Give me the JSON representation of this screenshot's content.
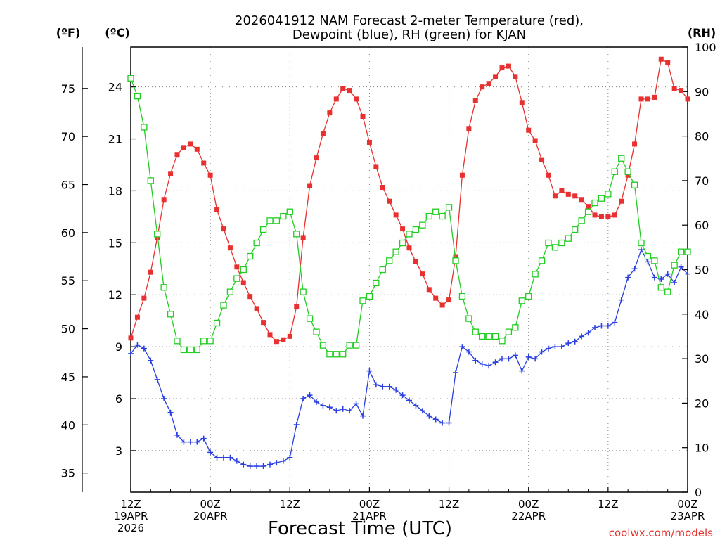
{
  "chart_data": {
    "type": "line",
    "title": "2026041912 NAM Forecast 2-meter Temperature (red),",
    "subtitle": "Dewpoint (blue), RH (green) for KJAN",
    "xlabel": "Forecast Time (UTC)",
    "credit": "coolwx.com/models",
    "units": {
      "fahrenheit": "(ºF)",
      "celsius": "(ºC)",
      "rh": "(RH)"
    },
    "ylim_celsius": [
      0.6,
      26.3
    ],
    "ylim_fahrenheit": [
      33.0,
      79.3
    ],
    "ylim_rh": [
      0,
      100
    ],
    "yticks_celsius": [
      "3",
      "6",
      "9",
      "12",
      "15",
      "18",
      "21",
      "24"
    ],
    "yticks_fahrenheit": [
      "35",
      "40",
      "45",
      "50",
      "55",
      "60",
      "65",
      "70",
      "75"
    ],
    "yticks_rh": [
      "0",
      "10",
      "20",
      "30",
      "40",
      "50",
      "60",
      "70",
      "80",
      "90",
      "100"
    ],
    "grid": true,
    "x_start_hour": 0,
    "x_end_hour": 84,
    "x_step_hours": 1,
    "xticks": [
      {
        "hour": 0,
        "lines": [
          "12Z",
          "19APR",
          "2026"
        ]
      },
      {
        "hour": 12,
        "lines": [
          "00Z",
          "20APR"
        ]
      },
      {
        "hour": 24,
        "lines": [
          "12Z"
        ]
      },
      {
        "hour": 36,
        "lines": [
          "00Z",
          "21APR"
        ]
      },
      {
        "hour": 48,
        "lines": [
          "12Z"
        ]
      },
      {
        "hour": 60,
        "lines": [
          "00Z",
          "22APR"
        ]
      },
      {
        "hour": 72,
        "lines": [
          "12Z"
        ]
      },
      {
        "hour": 84,
        "lines": [
          "00Z",
          "23APR"
        ]
      }
    ],
    "series": [
      {
        "name": "2-meter Temperature",
        "color": "#e83030",
        "axis": "celsius",
        "marker": "filled-square",
        "values": [
          9.5,
          10.7,
          11.8,
          13.3,
          15.3,
          17.5,
          19.0,
          20.1,
          20.5,
          20.7,
          20.4,
          19.6,
          18.9,
          16.9,
          15.8,
          14.7,
          13.6,
          12.7,
          11.9,
          11.2,
          10.4,
          9.7,
          9.3,
          9.4,
          9.6,
          11.3,
          15.3,
          18.3,
          19.9,
          21.3,
          22.5,
          23.3,
          23.9,
          23.8,
          23.3,
          22.3,
          20.8,
          19.4,
          18.2,
          17.4,
          16.6,
          15.8,
          14.7,
          13.9,
          13.2,
          12.3,
          11.8,
          11.4,
          11.7,
          14.2,
          18.9,
          21.6,
          23.2,
          24.0,
          24.2,
          24.6,
          25.1,
          25.2,
          24.6,
          23.1,
          21.5,
          20.9,
          19.8,
          18.9,
          17.7,
          18.0,
          17.8,
          17.7,
          17.5,
          17.1,
          16.6,
          16.5,
          16.5,
          16.6,
          17.4,
          18.9,
          20.7,
          23.3,
          23.3,
          23.4,
          25.6,
          25.4,
          23.9,
          23.8,
          23.3
        ]
      },
      {
        "name": "Dewpoint",
        "color": "#2a3fe0",
        "axis": "celsius",
        "marker": "plus",
        "values": [
          8.6,
          9.1,
          8.9,
          8.2,
          7.1,
          6.0,
          5.2,
          3.9,
          3.5,
          3.5,
          3.5,
          3.7,
          2.9,
          2.6,
          2.6,
          2.6,
          2.4,
          2.2,
          2.1,
          2.1,
          2.1,
          2.2,
          2.3,
          2.4,
          2.6,
          4.5,
          6.0,
          6.2,
          5.8,
          5.6,
          5.5,
          5.3,
          5.4,
          5.3,
          5.7,
          5.0,
          7.6,
          6.8,
          6.7,
          6.7,
          6.5,
          6.2,
          5.9,
          5.6,
          5.3,
          5.0,
          4.8,
          4.6,
          4.6,
          7.5,
          9.0,
          8.7,
          8.2,
          8.0,
          7.9,
          8.1,
          8.3,
          8.3,
          8.5,
          7.6,
          8.4,
          8.3,
          8.7,
          8.9,
          9.0,
          9.0,
          9.2,
          9.3,
          9.6,
          9.8,
          10.1,
          10.2,
          10.2,
          10.4,
          11.7,
          13.0,
          13.5,
          14.6,
          13.9,
          13.0,
          12.9,
          13.2,
          12.7,
          13.6,
          13.2
        ]
      },
      {
        "name": "RH",
        "color": "#22cc22",
        "axis": "rh",
        "marker": "open-square",
        "values": [
          93,
          89,
          82,
          70,
          58,
          46,
          40,
          34,
          32,
          32,
          32,
          34,
          34,
          38,
          42,
          45,
          48,
          50,
          53,
          56,
          59,
          61,
          61,
          62,
          63,
          58,
          45,
          39,
          36,
          33,
          31,
          31,
          31,
          33,
          33,
          43,
          44,
          47,
          50,
          52,
          54,
          56,
          58,
          59,
          60,
          62,
          63,
          62,
          64,
          52,
          44,
          39,
          36,
          35,
          35,
          35,
          34,
          36,
          37,
          43,
          44,
          49,
          52,
          56,
          55,
          56,
          57,
          59,
          61,
          63,
          65,
          66,
          67,
          72,
          75,
          72,
          69,
          56,
          53,
          52,
          46,
          45,
          51,
          54,
          54
        ]
      }
    ]
  }
}
